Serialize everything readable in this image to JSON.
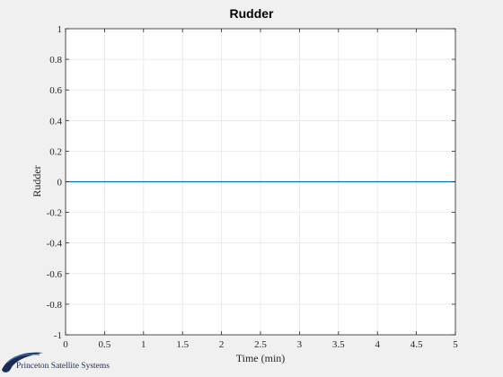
{
  "chart_data": {
    "type": "line",
    "title": "Rudder",
    "xlabel": "Time (min)",
    "ylabel": "Rudder",
    "xlim": [
      0,
      5
    ],
    "ylim": [
      -1,
      1
    ],
    "x_ticks": [
      0,
      0.5,
      1,
      1.5,
      2,
      2.5,
      3,
      3.5,
      4,
      4.5,
      5
    ],
    "x_tick_labels": [
      "0",
      "0.5",
      "1",
      "1.5",
      "2",
      "2.5",
      "3",
      "3.5",
      "4",
      "4.5",
      "5"
    ],
    "y_ticks": [
      -1,
      -0.8,
      -0.6,
      -0.4,
      -0.2,
      0,
      0.2,
      0.4,
      0.6,
      0.8,
      1
    ],
    "y_tick_labels": [
      "-1",
      "-0.8",
      "-0.6",
      "-0.4",
      "-0.2",
      "0",
      "0.2",
      "0.4",
      "0.6",
      "0.8",
      "1"
    ],
    "grid": true,
    "series": [
      {
        "x": [
          0,
          5
        ],
        "y": [
          0,
          0
        ],
        "color": "#0072bd"
      }
    ]
  },
  "brand": {
    "text": "Princeton Satellite Systems",
    "color": "#1b2a55"
  }
}
